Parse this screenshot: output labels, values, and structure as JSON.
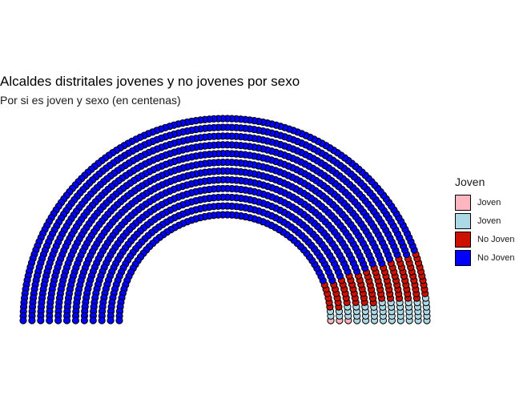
{
  "chart_data": {
    "type": "parliament",
    "title": "Alcaldes distritales jovenes y no jovenes por sexo",
    "subtitle": "Por si es joven y sexo (en centenas)",
    "legend_title": "Joven",
    "legend_position": "right",
    "series": [
      {
        "name": "Joven",
        "color": "#ffb6c1",
        "seats": 3
      },
      {
        "name": "Joven",
        "color": "#add8e6",
        "seats": 50
      },
      {
        "name": "No Joven",
        "color": "#cc1100",
        "seats": 95
      },
      {
        "name": "No Joven",
        "color": "#0000ff",
        "seats": 1150
      }
    ],
    "rows": 12
  }
}
